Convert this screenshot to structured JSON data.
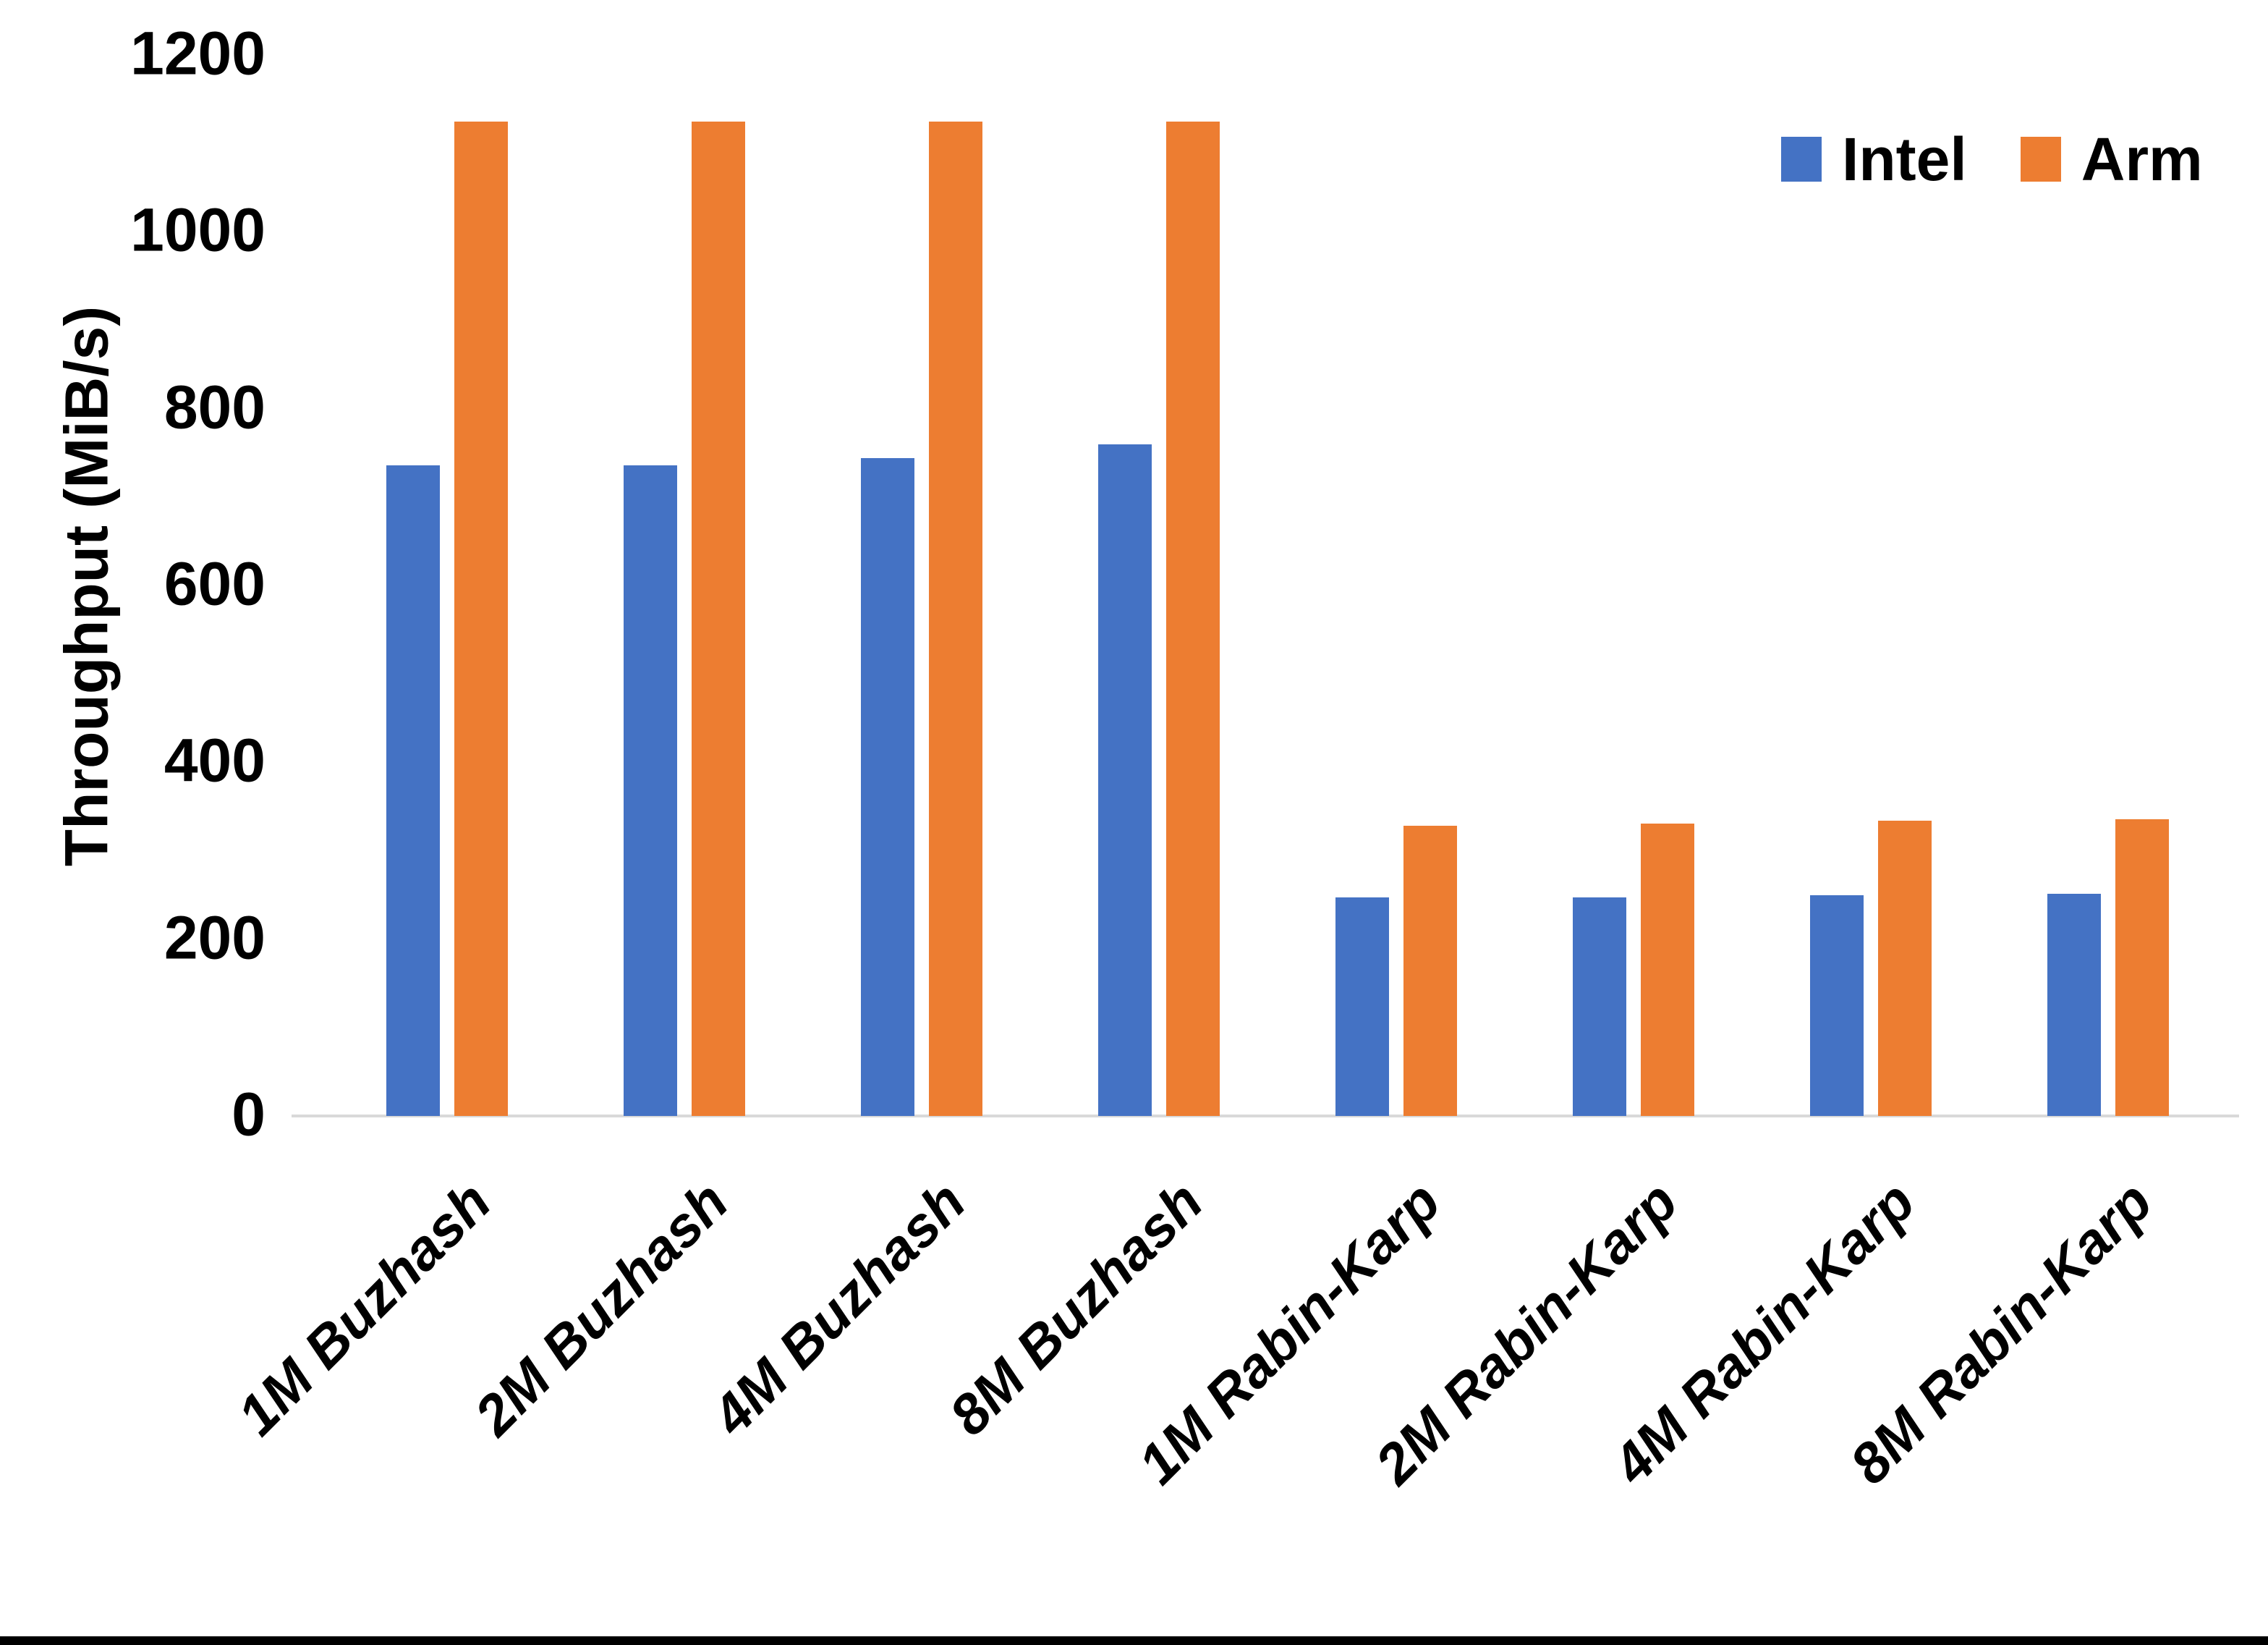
{
  "chart_data": {
    "type": "bar",
    "title": "",
    "xlabel": "",
    "ylabel": "Throughput (MiB/s)",
    "ylim": [
      0,
      1200
    ],
    "yticks": [
      0,
      200,
      400,
      600,
      800,
      1000,
      1200
    ],
    "grid": false,
    "legend_position": "top-right",
    "categories": [
      "1M Buzhash",
      "2M Buzhash",
      "4M Buzhash",
      "8M Buzhash",
      "1M Rabin-Karp",
      "2M Rabin-Karp",
      "4M Rabin-Karp",
      "8M Rabin-Karp"
    ],
    "series": [
      {
        "name": "Intel",
        "color": "#4472C4",
        "values": [
          736,
          736,
          744,
          760,
          247,
          247,
          250,
          251
        ]
      },
      {
        "name": "Arm",
        "color": "#ED7D31",
        "values": [
          1125,
          1125,
          1125,
          1125,
          328,
          331,
          334,
          336
        ]
      }
    ]
  },
  "colors": {
    "axis_line": "#D9D9D9",
    "text": "#000000",
    "background": "#FFFFFF",
    "bottom_border": "#000000"
  }
}
